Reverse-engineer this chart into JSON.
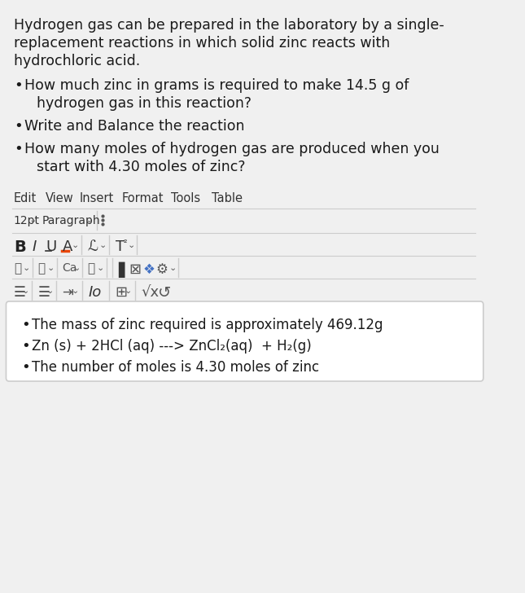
{
  "bg_color": "#f0f0f0",
  "white": "#ffffff",
  "text_color": "#1a1a1a",
  "gray_text": "#555555",
  "light_gray": "#e8e8e8",
  "border_color": "#cccccc",
  "header_text": "Hydrogen gas can be prepared in the laboratory by a single-\nreplacement reactions in which solid zinc reacts with\nhydrochloric acid.",
  "bullets": [
    "How much zinc in grams is required to make 14.5 g of\n    hydrogen gas in this reaction?",
    "Write and Balance the reaction",
    "How many moles of hydrogen gas are produced when you\n    start with 4.30 moles of zinc?"
  ],
  "menu_items": [
    "Edit",
    "View",
    "Insert",
    "Format",
    "Tools",
    "Table"
  ],
  "toolbar1_left": "12pt",
  "toolbar1_para": "Paragraph",
  "answer_bullets": [
    "The mass of zinc required is approximately 469.12g",
    "Zn (s) + 2HCl (aq) ---> ZnCl₂(aq)  + H₂(g)",
    "The number of moles is 4.30 moles of zinc"
  ]
}
